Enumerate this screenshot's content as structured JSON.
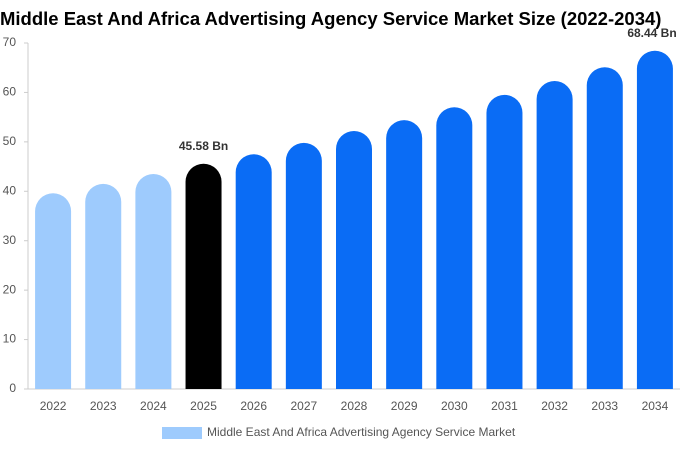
{
  "chart_data": {
    "type": "bar",
    "title": "Middle East And Africa Advertising Agency Service Market Size (2022-2034)",
    "categories": [
      "2022",
      "2023",
      "2024",
      "2025",
      "2026",
      "2027",
      "2028",
      "2029",
      "2030",
      "2031",
      "2032",
      "2033",
      "2034"
    ],
    "series": [
      {
        "name": "Middle East And Africa Advertising Agency Service Market",
        "color": "#9ecbfd",
        "values": [
          39.6,
          41.5,
          43.5,
          45.58,
          47.5,
          49.8,
          52.2,
          54.4,
          57.0,
          59.5,
          62.3,
          65.1,
          68.44
        ],
        "value_labels": [
          null,
          null,
          null,
          "45.58 Bn",
          null,
          null,
          null,
          null,
          null,
          null,
          null,
          null,
          "68.44 Bn"
        ],
        "colors": [
          "#9ecbfd",
          "#9ecbfd",
          "#9ecbfd",
          "#000000",
          "#0a6cf5",
          "#0a6cf5",
          "#0a6cf5",
          "#0a6cf5",
          "#0a6cf5",
          "#0a6cf5",
          "#0a6cf5",
          "#0a6cf5",
          "#0a6cf5"
        ]
      }
    ],
    "ylim": [
      0,
      70
    ],
    "yticks": [
      0,
      10,
      20,
      30,
      40,
      50,
      60,
      70
    ],
    "grid": false
  }
}
